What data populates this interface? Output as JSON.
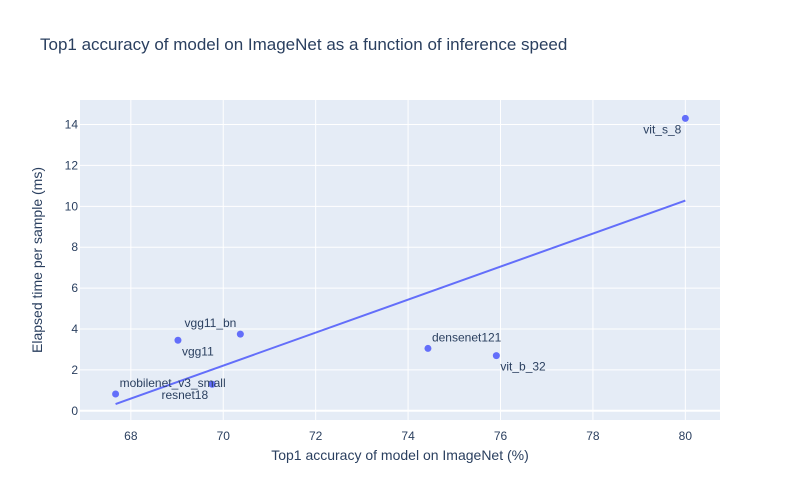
{
  "chart_data": {
    "type": "scatter",
    "title": "Top1 accuracy of model on ImageNet as a function of inference speed",
    "xlabel": "Top1 accuracy of model on ImageNet (%)",
    "ylabel": "Elapsed time per sample (ms)",
    "xlim": [
      66.9,
      80.75
    ],
    "ylim": [
      -0.45,
      15.2
    ],
    "xticks": [
      68,
      70,
      72,
      74,
      76,
      78,
      80
    ],
    "yticks": [
      0,
      2,
      4,
      6,
      8,
      10,
      12,
      14
    ],
    "grid": true,
    "points": [
      {
        "label": "mobilenet_v3_small",
        "x": 67.67,
        "y": 0.82,
        "label_pos": "top-right"
      },
      {
        "label": "resnet18",
        "x": 69.76,
        "y": 1.3,
        "label_pos": "bottom-left"
      },
      {
        "label": "vgg11",
        "x": 69.02,
        "y": 3.45,
        "label_pos": "bottom-right"
      },
      {
        "label": "vgg11_bn",
        "x": 70.37,
        "y": 3.75,
        "label_pos": "top-left"
      },
      {
        "label": "densenet121",
        "x": 74.43,
        "y": 3.05,
        "label_pos": "top-right"
      },
      {
        "label": "vit_b_32",
        "x": 75.91,
        "y": 2.7,
        "label_pos": "bottom-right"
      },
      {
        "label": "vit_s_8",
        "x": 80.0,
        "y": 14.3,
        "label_pos": "bottom-left"
      }
    ],
    "trendline": {
      "x": [
        67.67,
        80.0
      ],
      "y": [
        0.33,
        10.28
      ]
    },
    "colors": {
      "marker": "#636efa",
      "line": "#636efa",
      "plot_bg": "#e5ecf6",
      "grid": "#ffffff",
      "text": "#2a3f5f"
    }
  }
}
